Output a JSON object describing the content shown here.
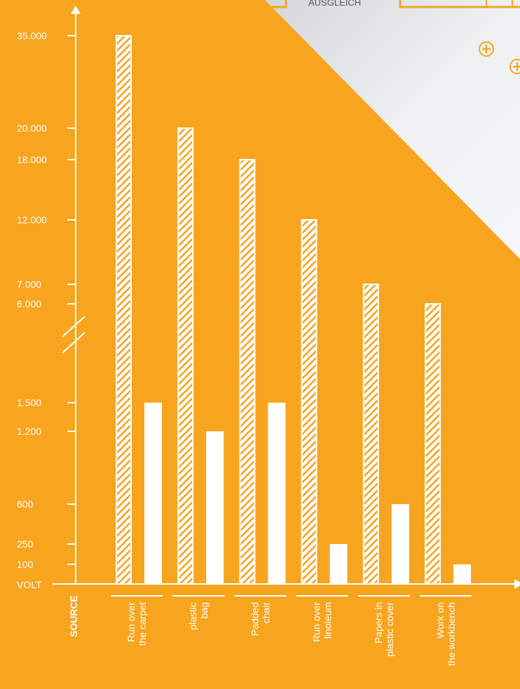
{
  "colors": {
    "background": "#F7A41E",
    "corner": "#E4E6EA",
    "foreground": "#FFFFFF",
    "hatch": "#F7A41E"
  },
  "corner": {
    "caption": "AUSGLEICH",
    "plus_icon_count": 2
  },
  "chart_data": {
    "type": "bar",
    "xlabel": "SOURCE",
    "ylabel": "VOLT",
    "y_axis_break": true,
    "grid": false,
    "legend": "none",
    "yticks": [
      {
        "value": 35000,
        "label": "35.000"
      },
      {
        "value": 20000,
        "label": "20.000"
      },
      {
        "value": 18000,
        "label": "18.000"
      },
      {
        "value": 12000,
        "label": "12.000"
      },
      {
        "value": 7000,
        "label": "7.000"
      },
      {
        "value": 6000,
        "label": "6.000"
      },
      {
        "value": 1500,
        "label": "1.500"
      },
      {
        "value": 1200,
        "label": "1.200"
      },
      {
        "value": 600,
        "label": "600"
      },
      {
        "value": 250,
        "label": "250"
      },
      {
        "value": 100,
        "label": "100"
      }
    ],
    "categories": [
      {
        "lines": [
          "Run over",
          "the carpet"
        ]
      },
      {
        "lines": [
          "plastic",
          "bag"
        ]
      },
      {
        "lines": [
          "Padded",
          "chair"
        ]
      },
      {
        "lines": [
          "Run over",
          "linoleum"
        ]
      },
      {
        "lines": [
          "Papers in",
          "plastic cover"
        ]
      },
      {
        "lines": [
          "Work on",
          "the workbench"
        ]
      }
    ],
    "series": [
      {
        "style": "hatched",
        "values": [
          35000,
          20000,
          18000,
          12000,
          7000,
          6000
        ]
      },
      {
        "style": "solid",
        "values": [
          1500,
          1200,
          1500,
          250,
          600,
          100
        ]
      }
    ]
  }
}
